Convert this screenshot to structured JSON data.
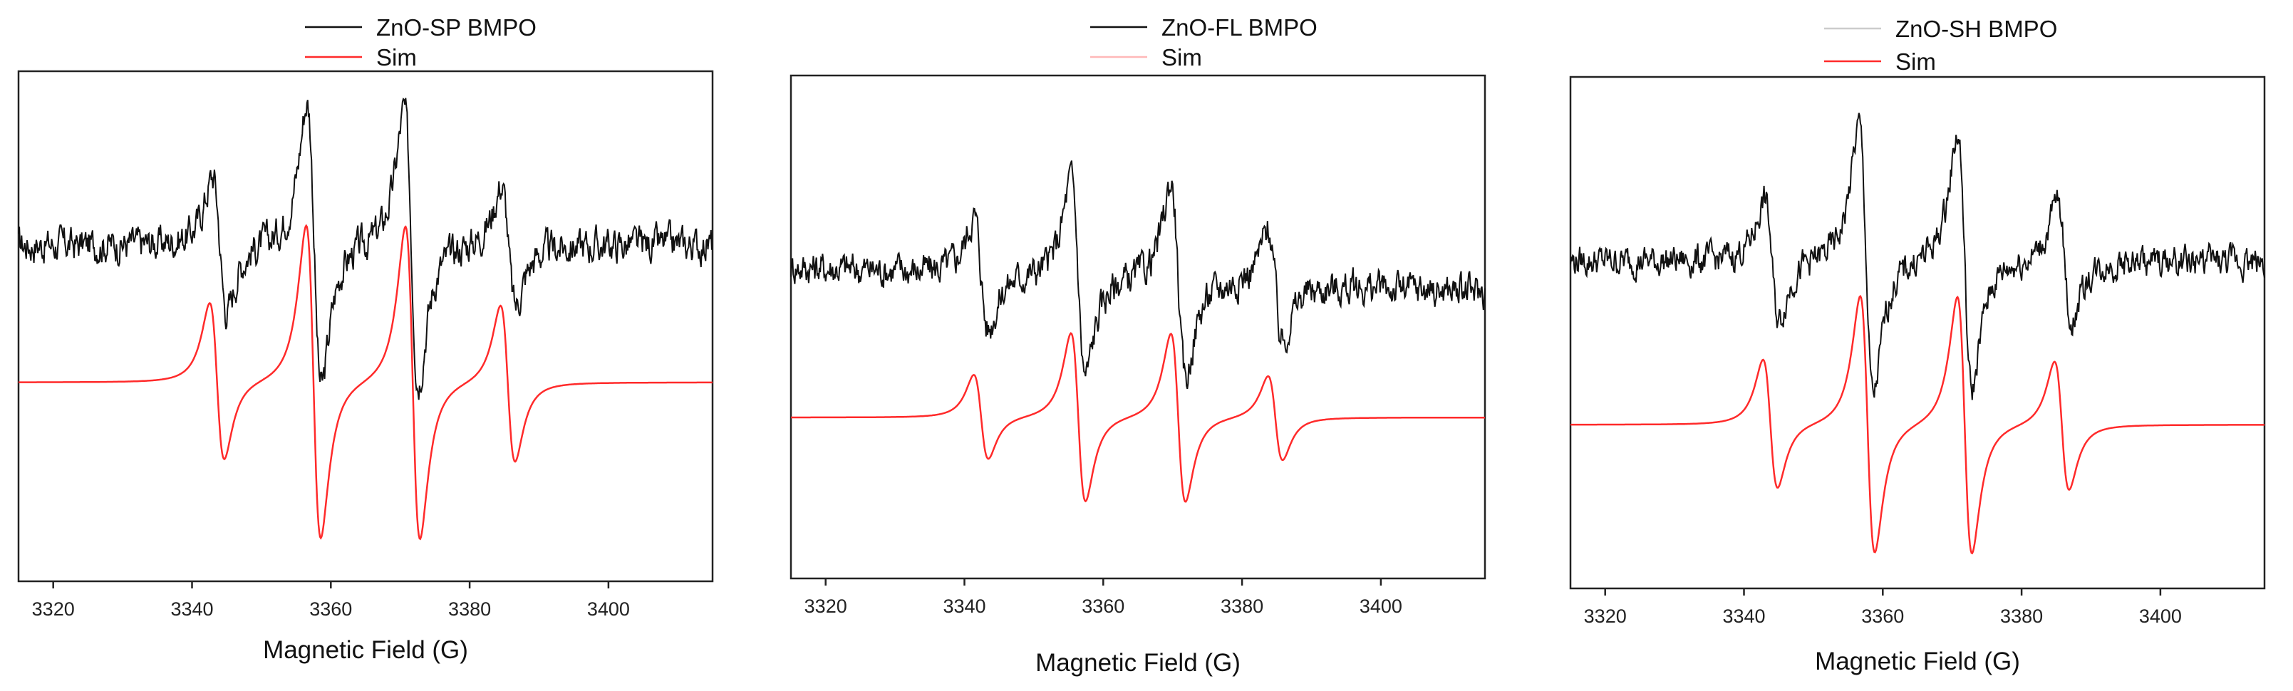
{
  "chart_data": [
    {
      "type": "line",
      "panel": "left",
      "legend": [
        {
          "label": "ZnO-SP BMPO",
          "color": "#111111"
        },
        {
          "label": "Sim",
          "color": "#ff2a2a"
        }
      ],
      "xlabel": "Magnetic Field (G)",
      "xlim": [
        3315,
        3415
      ],
      "xticks": [
        3320,
        3340,
        3360,
        3380,
        3400
      ],
      "xtick_labels": [
        "3320",
        "3340",
        "3360",
        "3380",
        "3400"
      ],
      "grid": false,
      "series": [
        {
          "name": "ZnO-SP BMPO",
          "kind": "experimental",
          "baseline": 0.66,
          "amp": 1.0,
          "noise": 0.025,
          "lines": [
            {
              "pos": 3344.0,
              "a": 0.19
            },
            {
              "pos": 3357.6,
              "a": 0.4
            },
            {
              "pos": 3371.6,
              "a": 0.38
            },
            {
              "pos": 3385.6,
              "a": 0.17
            }
          ]
        },
        {
          "name": "Sim",
          "kind": "simulation",
          "baseline": 0.39,
          "amp": 1.0,
          "lines": [
            {
              "pos": 3343.6,
              "a": 0.22
            },
            {
              "pos": 3357.5,
              "a": 0.44
            },
            {
              "pos": 3371.8,
              "a": 0.44
            },
            {
              "pos": 3385.5,
              "a": 0.22
            }
          ]
        }
      ]
    },
    {
      "type": "line",
      "panel": "middle",
      "legend": [
        {
          "label": "ZnO-FL BMPO",
          "color": "#111111"
        },
        {
          "label": "Sim",
          "color": "#ffb8b8"
        }
      ],
      "xlabel": "Magnetic Field (G)",
      "xlim": [
        3315,
        3415
      ],
      "xticks": [
        3320,
        3340,
        3360,
        3380,
        3400
      ],
      "xtick_labels": [
        "3320",
        "3340",
        "3360",
        "3380",
        "3400"
      ],
      "grid": false,
      "series": [
        {
          "name": "ZnO-FL BMPO",
          "kind": "experimental",
          "baseline": 0.62,
          "amp": 1.0,
          "noise": 0.025,
          "slope": -0.05,
          "lines": [
            {
              "pos": 3342.4,
              "a": 0.16
            },
            {
              "pos": 3356.4,
              "a": 0.28
            },
            {
              "pos": 3370.8,
              "a": 0.28
            },
            {
              "pos": 3384.8,
              "a": 0.16
            }
          ]
        },
        {
          "name": "Sim",
          "kind": "simulation",
          "baseline": 0.32,
          "amp": 1.0,
          "lines": [
            {
              "pos": 3342.4,
              "a": 0.12
            },
            {
              "pos": 3356.4,
              "a": 0.24
            },
            {
              "pos": 3370.8,
              "a": 0.24
            },
            {
              "pos": 3384.8,
              "a": 0.12
            }
          ]
        }
      ]
    },
    {
      "type": "line",
      "panel": "right",
      "legend": [
        {
          "label": "ZnO-SH BMPO",
          "color": "#cccccc"
        },
        {
          "label": "Sim",
          "color": "#ff2a2a"
        }
      ],
      "xlabel": "Magnetic Field (G)",
      "xlim": [
        3315,
        3415
      ],
      "xticks": [
        3320,
        3340,
        3360,
        3380,
        3400
      ],
      "xtick_labels": [
        "3320",
        "3340",
        "3360",
        "3380",
        "3400"
      ],
      "grid": false,
      "series": [
        {
          "name": "ZnO-SH BMPO",
          "kind": "experimental",
          "baseline": 0.64,
          "amp": 1.0,
          "noise": 0.022,
          "lines": [
            {
              "pos": 3344.0,
              "a": 0.17
            },
            {
              "pos": 3357.6,
              "a": 0.38
            },
            {
              "pos": 3371.8,
              "a": 0.36
            },
            {
              "pos": 3386.2,
              "a": 0.17
            }
          ]
        },
        {
          "name": "Sim",
          "kind": "simulation",
          "baseline": 0.32,
          "amp": 1.0,
          "lines": [
            {
              "pos": 3343.8,
              "a": 0.18
            },
            {
              "pos": 3357.8,
              "a": 0.36
            },
            {
              "pos": 3371.8,
              "a": 0.36
            },
            {
              "pos": 3385.8,
              "a": 0.18
            }
          ]
        }
      ]
    }
  ]
}
